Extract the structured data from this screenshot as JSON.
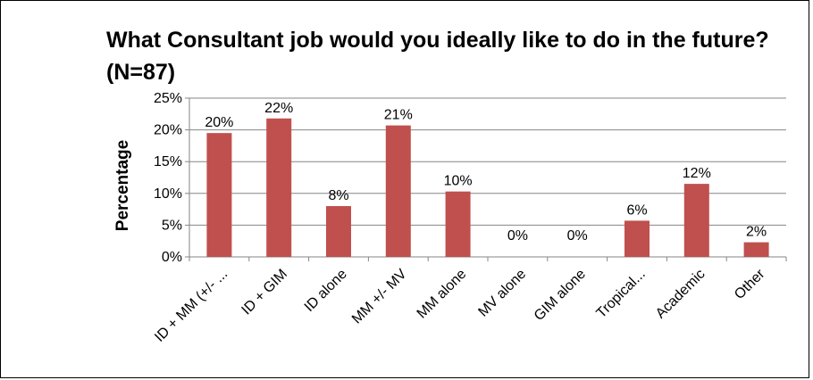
{
  "chart_data": {
    "type": "bar",
    "title": "What Consultant job would you ideally like to do in the future? (N=87)",
    "xlabel": "",
    "ylabel": "Percentage",
    "categories": [
      "ID + MM (+/- ...",
      "ID + GIM",
      "ID alone",
      "MM +/- MV",
      "MM alone",
      "MV alone",
      "GIM alone",
      "Tropical...",
      "Academic",
      "Other"
    ],
    "values": [
      19.5,
      21.8,
      8.0,
      20.7,
      10.3,
      0,
      0,
      5.7,
      11.5,
      2.3
    ],
    "data_labels": [
      "20%",
      "22%",
      "8%",
      "21%",
      "10%",
      "0%",
      "0%",
      "6%",
      "12%",
      "2%"
    ],
    "yticks": [
      "0%",
      "5%",
      "10%",
      "15%",
      "20%",
      "25%"
    ],
    "ylim": [
      0,
      25
    ],
    "grid": true,
    "legend": "none",
    "bar_color": "#c0504d"
  }
}
